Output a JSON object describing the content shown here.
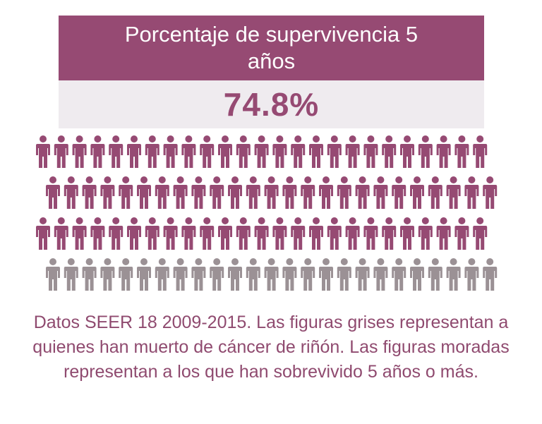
{
  "colors": {
    "purple": "#964a73",
    "light_band": "#efebef",
    "gray": "#9b9195",
    "caption_text": "#8f4a6f"
  },
  "header": {
    "title": "Porcentaje de supervivencia 5 años",
    "value": "74.8%"
  },
  "caption": {
    "text": "Datos SEER 18 2009-2015. Las figuras grises representan a quienes han muerto de cáncer de riñón. Las figuras moradas representan a los que han sobrevivido 5 años o más."
  },
  "chart_data": {
    "type": "pictograph",
    "unit_icon": "person-icon",
    "rows": [
      {
        "icons": 25,
        "category": "survived"
      },
      {
        "icons": 25,
        "category": "survived"
      },
      {
        "icons": 25,
        "category": "survived"
      },
      {
        "icons": 25,
        "category": "died"
      }
    ],
    "survival_percent": 74.8
  }
}
